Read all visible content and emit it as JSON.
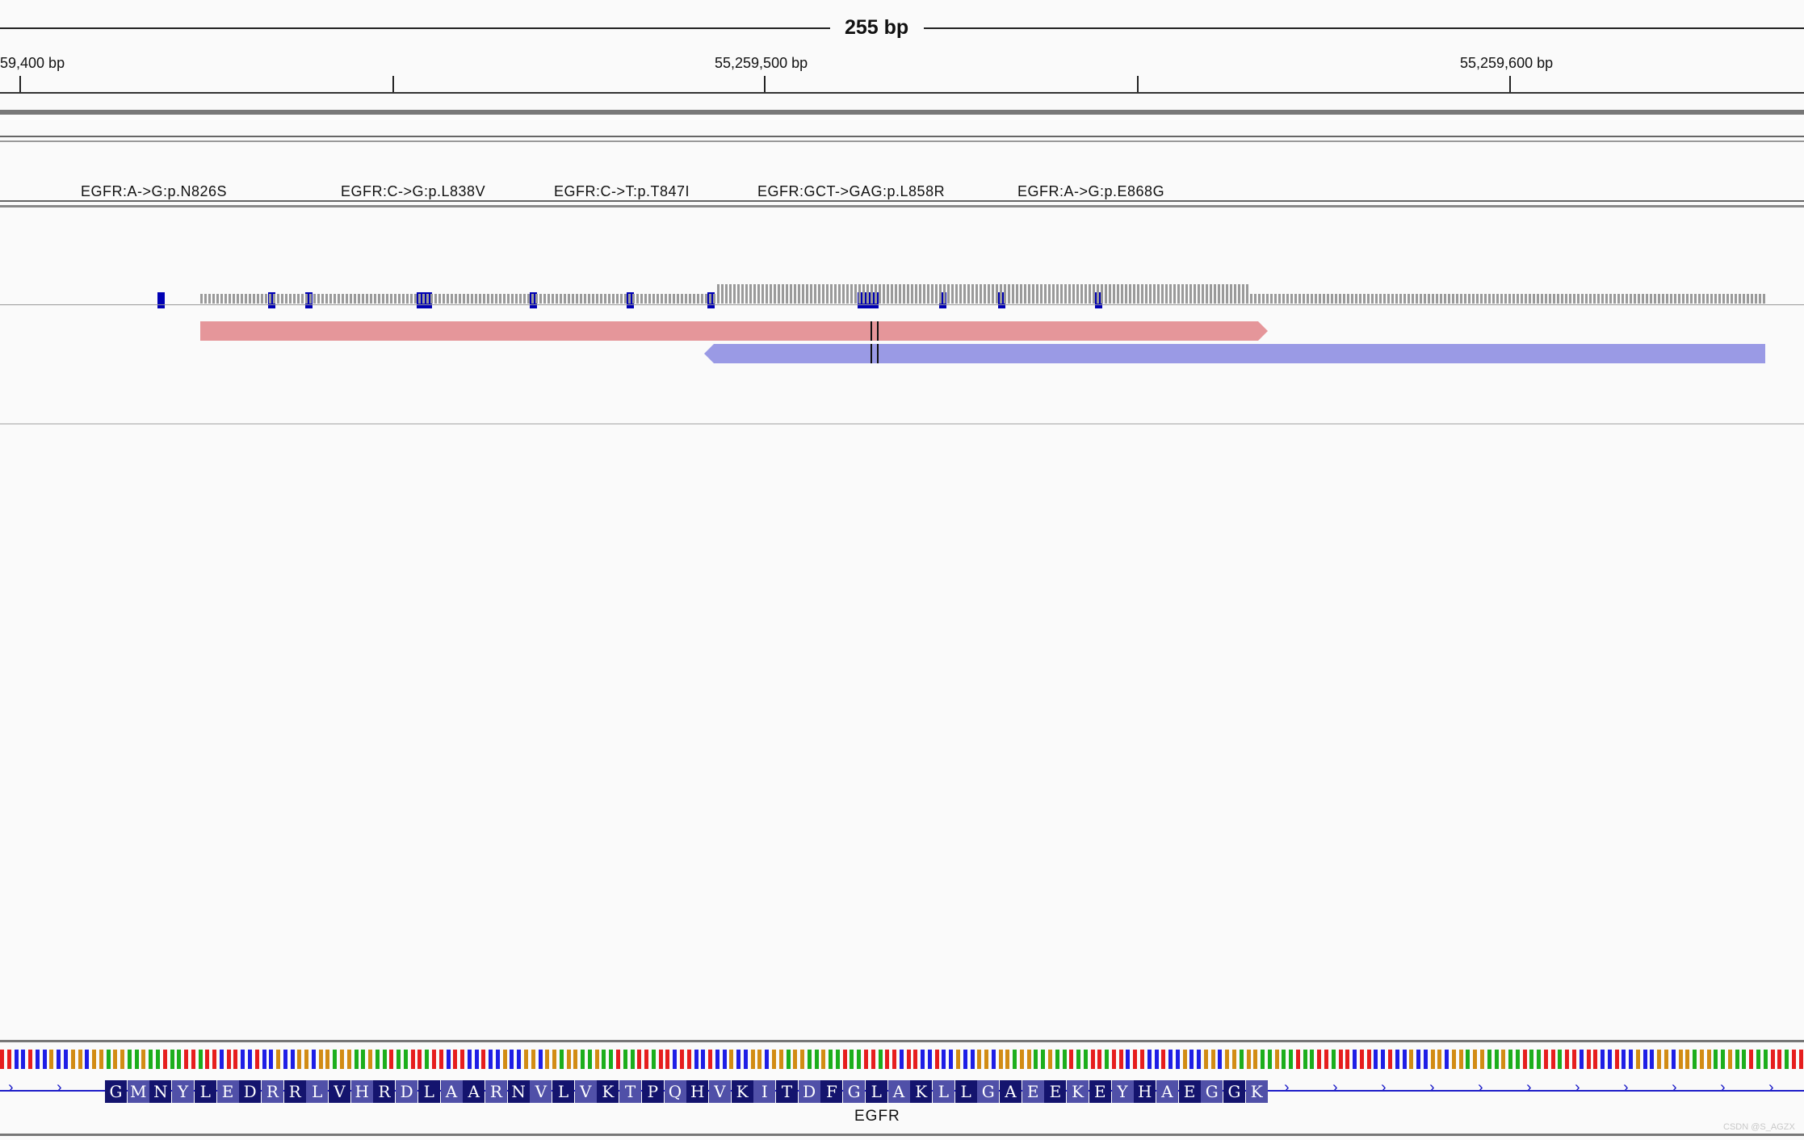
{
  "ruler": {
    "span": "255 bp",
    "tick_labels": [
      "59,400 bp",
      "55,259,500 bp",
      "55,259,600 bp"
    ]
  },
  "mutations": {
    "labels": [
      "EGFR:A->G:p.N826S",
      "EGFR:C->G:p.L838V",
      "EGFR:C->T:p.T847I",
      "EGFR:GCT->GAG:p.L858R",
      "EGFR:A->G:p.E868G"
    ]
  },
  "reads": {
    "forward_color": "#e5969a",
    "reverse_color": "#9a9ae5"
  },
  "gene": {
    "name": "EGFR",
    "amino_acids": [
      "G",
      "M",
      "N",
      "Y",
      "L",
      "E",
      "D",
      "R",
      "R",
      "L",
      "V",
      "H",
      "R",
      "D",
      "L",
      "A",
      "A",
      "R",
      "N",
      "V",
      "L",
      "V",
      "K",
      "T",
      "P",
      "Q",
      "H",
      "V",
      "K",
      "I",
      "T",
      "D",
      "F",
      "G",
      "L",
      "A",
      "K",
      "L",
      "L",
      "G",
      "A",
      "E",
      "E",
      "K",
      "E",
      "Y",
      "H",
      "A",
      "E",
      "G",
      "G",
      "K"
    ]
  },
  "colors": {
    "mutation_block": "#0000b4",
    "coverage": "#9a9a9a",
    "base_A": "#1cae1c",
    "base_C": "#1e1ee6",
    "base_G": "#d28c14",
    "base_T": "#e61e1e",
    "aa_dark": "#14146e",
    "aa_light": "#5050a8"
  },
  "watermark": "CSDN @S_AGZX"
}
